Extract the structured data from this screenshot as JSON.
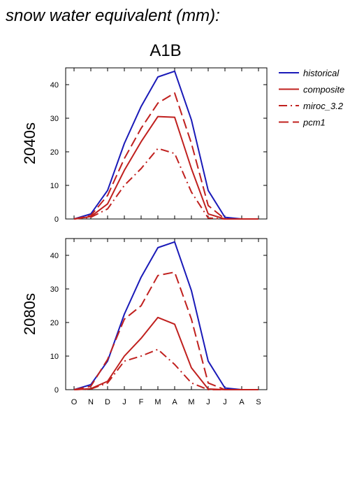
{
  "figure_title": "snow water equivalent (mm):",
  "scenario": "A1B",
  "legend": [
    {
      "label": "historical",
      "color": "#1a1ab8",
      "dash": "solid"
    },
    {
      "label": "composite",
      "color": "#c0201e",
      "dash": "solid"
    },
    {
      "label": "miroc_3.2",
      "color": "#c0201e",
      "dash": "dashdot"
    },
    {
      "label": "pcm1",
      "color": "#c0201e",
      "dash": "dash"
    }
  ],
  "chart_data": [
    {
      "type": "line",
      "row_label": "2040s",
      "categories": [
        "O",
        "N",
        "D",
        "J",
        "F",
        "M",
        "A",
        "M",
        "J",
        "J",
        "A",
        "S"
      ],
      "ylim": [
        0,
        45
      ],
      "yticks": [
        "0",
        "10",
        "20",
        "30",
        "40"
      ],
      "series": [
        {
          "name": "historical",
          "values": [
            0,
            1.5,
            8.5,
            22.5,
            33.5,
            42.3,
            44,
            29.5,
            8.5,
            0.5,
            0,
            0
          ]
        },
        {
          "name": "composite",
          "values": [
            0,
            0.7,
            4.5,
            14.5,
            23,
            30.5,
            30.3,
            15,
            1.5,
            0,
            0,
            0
          ]
        },
        {
          "name": "miroc_3.2",
          "values": [
            0,
            0.5,
            3,
            10,
            15,
            21,
            19.5,
            8,
            0.3,
            0,
            0,
            0
          ]
        },
        {
          "name": "pcm1",
          "values": [
            0,
            1,
            7,
            18,
            27,
            34.5,
            37.5,
            22.5,
            4,
            0,
            0,
            0
          ]
        }
      ]
    },
    {
      "type": "line",
      "row_label": "2080s",
      "categories": [
        "O",
        "N",
        "D",
        "J",
        "F",
        "M",
        "A",
        "M",
        "J",
        "J",
        "A",
        "S"
      ],
      "ylim": [
        0,
        45
      ],
      "yticks": [
        "0",
        "10",
        "20",
        "30",
        "40"
      ],
      "series": [
        {
          "name": "historical",
          "values": [
            0,
            1.5,
            8.5,
            22.5,
            33.5,
            42.3,
            44,
            29.5,
            8.5,
            0.5,
            0,
            0
          ]
        },
        {
          "name": "composite",
          "values": [
            0,
            0.3,
            2.5,
            10,
            15.3,
            21.5,
            19.5,
            6.5,
            0.2,
            0,
            0,
            0
          ]
        },
        {
          "name": "miroc_3.2",
          "values": [
            0,
            0.2,
            2,
            8.5,
            10,
            12,
            7.5,
            2,
            0,
            0,
            0,
            0
          ]
        },
        {
          "name": "pcm1",
          "values": [
            0,
            1,
            9,
            21,
            25,
            34,
            35,
            21,
            2,
            0,
            0,
            0
          ]
        }
      ]
    }
  ]
}
